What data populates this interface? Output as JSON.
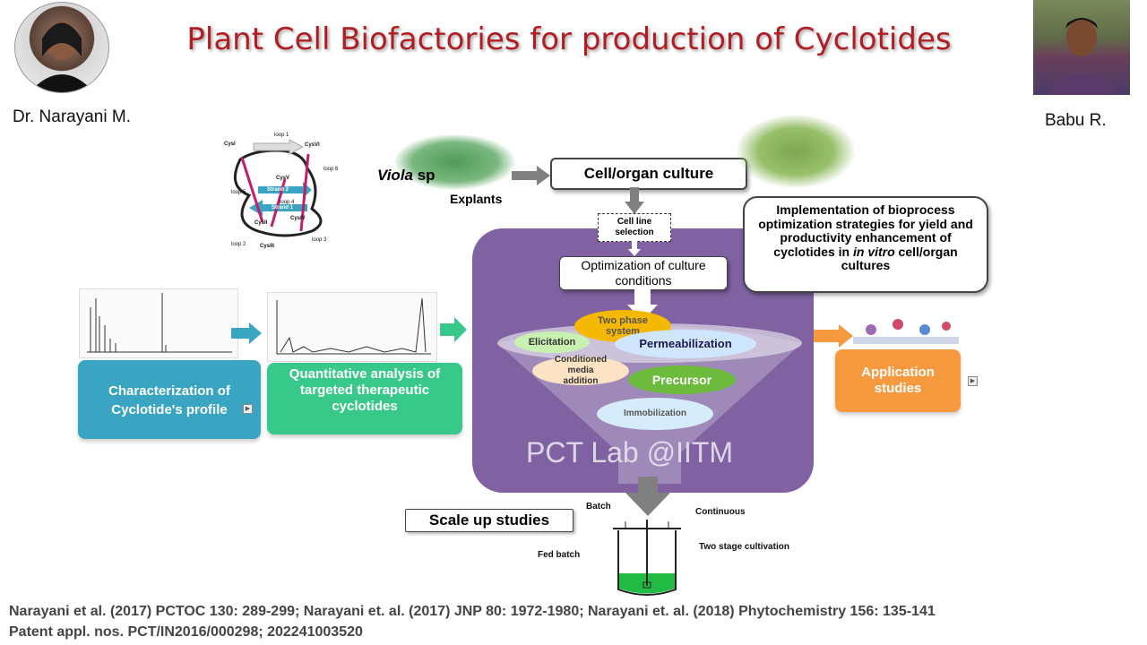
{
  "title": "Plant Cell Biofactories for production of Cyclotides",
  "people": {
    "left_name": "Dr. Narayani M.",
    "right_name": "Babu R."
  },
  "structure_labels": {
    "loop1": "loop 1",
    "loop2": "loop 2",
    "loop3": "loop 3",
    "loop4": "loop 4",
    "loop5": "loop 5",
    "loop6": "loop 6",
    "strand1": "Strand 1",
    "strand2": "Strand 2",
    "cys1": "CysI",
    "cys2": "CysII",
    "cys3": "CysIII",
    "cys4": "CysIV",
    "cys5": "CysV",
    "cys6": "CysVI"
  },
  "flow": {
    "viola_italic": "Viola",
    "viola_rest": " sp",
    "explants": "Explants",
    "cell_organ_culture": "Cell/organ culture",
    "cell_line_selection": "Cell line selection",
    "optimization": "Optimization of culture conditions",
    "implementation_pre": "Implementation of bioprocess optimization strategies for yield and productivity enhancement of cyclotides in ",
    "implementation_italic": "in vitro",
    "implementation_post": " cell/organ cultures",
    "two_phase": "Two phase system",
    "elicitation": "Elicitation",
    "permeabilization": "Permeabilization",
    "conditioned_media": "Conditioned media addition",
    "precursor": "Precursor",
    "immobilization": "Immobilization",
    "lab_label": "PCT Lab @IITM",
    "characterization": "Characterization of Cyclotide's profile",
    "quantitative": "Quantitative analysis of targeted therapeutic cyclotides",
    "application": "Application studies",
    "scale_up": "Scale up studies",
    "batch": "Batch",
    "continuous": "Continuous",
    "fed_batch": "Fed batch",
    "two_stage": "Two stage cultivation"
  },
  "references": {
    "line1": "Narayani et al. (2017)  PCTOC 130: 289-299;  Narayani et. al. (2017)  JNP 80: 1972-1980;  Narayani et. al. (2018)  Phytochemistry 156: 135-141",
    "line2": "Patent appl. nos. PCT/IN2016/000298; 202241003520"
  },
  "colors": {
    "title": "#b01e24",
    "teal": "#3aa5c3",
    "green": "#38c98a",
    "orange": "#f79a3f",
    "purple": "#8062a3",
    "grey_arrow": "#808080"
  }
}
